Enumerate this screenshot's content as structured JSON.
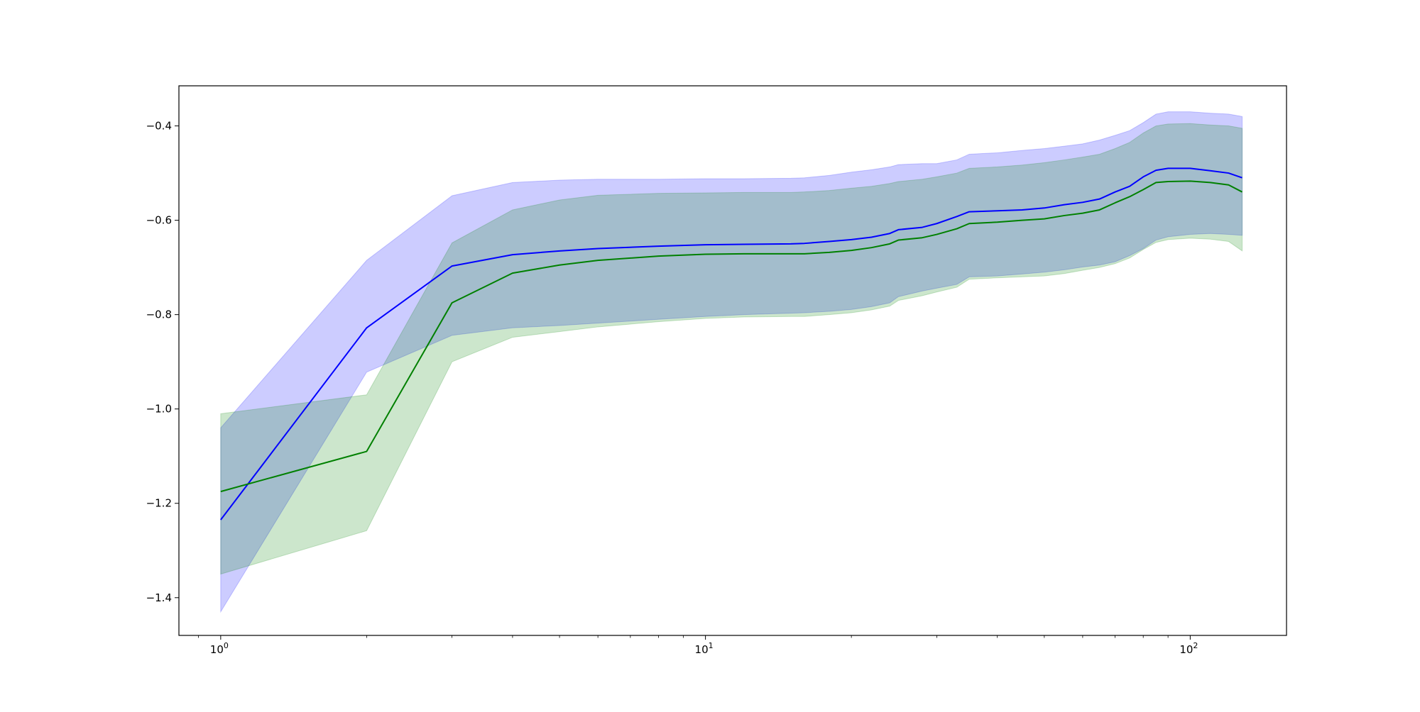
{
  "chart_data": {
    "type": "line",
    "title": "",
    "xlabel": "",
    "ylabel": "",
    "xscale": "log",
    "xlim": [
      0.82,
      158
    ],
    "ylim": [
      -1.48,
      -0.315
    ],
    "grid": false,
    "legend": "none",
    "x_tick_labels": [
      {
        "value": 1,
        "base": "10",
        "exp": "0"
      },
      {
        "value": 10,
        "base": "10",
        "exp": "1"
      },
      {
        "value": 100,
        "base": "10",
        "exp": "2"
      }
    ],
    "y_tick_labels": [
      {
        "value": -0.4,
        "label": "−0.4"
      },
      {
        "value": -0.6,
        "label": "−0.6"
      },
      {
        "value": -0.8,
        "label": "−0.8"
      },
      {
        "value": -1.0,
        "label": "−1.0"
      },
      {
        "value": -1.2,
        "label": "−1.2"
      },
      {
        "value": -1.4,
        "label": "−1.4"
      }
    ],
    "series": [
      {
        "color": "#0000ff",
        "band_color": "#0000ff",
        "x": [
          1,
          2,
          3,
          4,
          5,
          6,
          8,
          10,
          12,
          15,
          16,
          18,
          20,
          22,
          24,
          25,
          28,
          30,
          33,
          35,
          40,
          45,
          50,
          55,
          60,
          65,
          70,
          75,
          80,
          85,
          90,
          100,
          110,
          120,
          128
        ],
        "mean": [
          -1.235,
          -0.828,
          -0.697,
          -0.673,
          -0.665,
          -0.66,
          -0.655,
          -0.652,
          -0.651,
          -0.65,
          -0.649,
          -0.645,
          -0.641,
          -0.636,
          -0.628,
          -0.62,
          -0.615,
          -0.607,
          -0.592,
          -0.582,
          -0.58,
          -0.578,
          -0.574,
          -0.567,
          -0.562,
          -0.555,
          -0.54,
          -0.528,
          -0.508,
          -0.494,
          -0.49,
          -0.49,
          -0.495,
          -0.5,
          -0.51
        ],
        "upper": [
          -1.04,
          -0.685,
          -0.548,
          -0.52,
          -0.515,
          -0.513,
          -0.513,
          -0.512,
          -0.512,
          -0.511,
          -0.51,
          -0.505,
          -0.498,
          -0.493,
          -0.487,
          -0.482,
          -0.48,
          -0.48,
          -0.472,
          -0.46,
          -0.457,
          -0.452,
          -0.448,
          -0.443,
          -0.438,
          -0.43,
          -0.42,
          -0.41,
          -0.393,
          -0.375,
          -0.37,
          -0.37,
          -0.373,
          -0.375,
          -0.38
        ],
        "lower": [
          -1.43,
          -0.922,
          -0.844,
          -0.828,
          -0.823,
          -0.818,
          -0.81,
          -0.804,
          -0.8,
          -0.797,
          -0.796,
          -0.793,
          -0.789,
          -0.783,
          -0.775,
          -0.762,
          -0.75,
          -0.744,
          -0.736,
          -0.72,
          -0.718,
          -0.714,
          -0.71,
          -0.705,
          -0.699,
          -0.695,
          -0.688,
          -0.675,
          -0.66,
          -0.642,
          -0.635,
          -0.63,
          -0.628,
          -0.63,
          -0.632
        ]
      },
      {
        "color": "#008000",
        "band_color": "#008000",
        "x": [
          1,
          2,
          3,
          4,
          5,
          6,
          8,
          10,
          12,
          15,
          16,
          18,
          20,
          22,
          24,
          25,
          28,
          30,
          33,
          35,
          40,
          45,
          50,
          55,
          60,
          65,
          70,
          75,
          80,
          85,
          90,
          100,
          110,
          120,
          128
        ],
        "mean": [
          -1.175,
          -1.09,
          -0.775,
          -0.712,
          -0.695,
          -0.685,
          -0.676,
          -0.672,
          -0.671,
          -0.671,
          -0.671,
          -0.668,
          -0.664,
          -0.658,
          -0.65,
          -0.642,
          -0.637,
          -0.63,
          -0.618,
          -0.607,
          -0.604,
          -0.6,
          -0.597,
          -0.59,
          -0.585,
          -0.578,
          -0.563,
          -0.55,
          -0.535,
          -0.52,
          -0.518,
          -0.517,
          -0.52,
          -0.525,
          -0.54
        ],
        "upper": [
          -1.01,
          -0.97,
          -0.648,
          -0.578,
          -0.557,
          -0.547,
          -0.543,
          -0.542,
          -0.541,
          -0.541,
          -0.54,
          -0.537,
          -0.532,
          -0.528,
          -0.522,
          -0.518,
          -0.513,
          -0.508,
          -0.5,
          -0.49,
          -0.487,
          -0.483,
          -0.478,
          -0.472,
          -0.466,
          -0.46,
          -0.448,
          -0.435,
          -0.415,
          -0.4,
          -0.396,
          -0.395,
          -0.398,
          -0.4,
          -0.405
        ],
        "lower": [
          -1.35,
          -1.258,
          -0.9,
          -0.848,
          -0.836,
          -0.826,
          -0.815,
          -0.808,
          -0.805,
          -0.804,
          -0.804,
          -0.8,
          -0.796,
          -0.79,
          -0.782,
          -0.77,
          -0.76,
          -0.752,
          -0.742,
          -0.725,
          -0.722,
          -0.72,
          -0.718,
          -0.713,
          -0.706,
          -0.7,
          -0.692,
          -0.68,
          -0.662,
          -0.647,
          -0.641,
          -0.638,
          -0.64,
          -0.645,
          -0.665
        ]
      }
    ]
  }
}
